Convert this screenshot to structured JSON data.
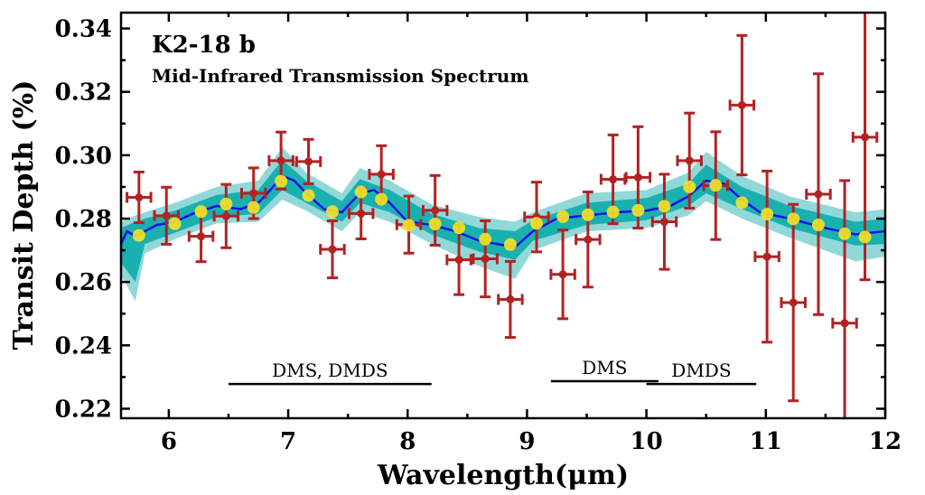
{
  "chart_data": {
    "type": "scatter",
    "title": "K2-18 b",
    "subtitle": "Mid-Infrared Transmission Spectrum",
    "xlabel": "Wavelength(μm)",
    "ylabel": "Transit Depth (%)",
    "xlim": [
      5.6,
      12.0
    ],
    "ylim": [
      0.217,
      0.345
    ],
    "x_ticks": [
      6,
      7,
      8,
      9,
      10,
      11,
      12
    ],
    "y_ticks": [
      0.22,
      0.24,
      0.26,
      0.28,
      0.3,
      0.32,
      0.34
    ],
    "grid": false,
    "colors": {
      "observed": "#b22222",
      "binned_model": "#f2e226",
      "median_model": "#1010e8",
      "band_1sigma": "#1ab0b0",
      "band_2sigma": "#92d8d8"
    },
    "observed": {
      "x": [
        5.75,
        5.98,
        6.27,
        6.48,
        6.71,
        6.94,
        7.17,
        7.37,
        7.61,
        7.78,
        8.01,
        8.23,
        8.43,
        8.65,
        8.86,
        9.08,
        9.3,
        9.51,
        9.72,
        9.93,
        10.15,
        10.36,
        10.58,
        10.8,
        11.01,
        11.23,
        11.44,
        11.66,
        11.83
      ],
      "y": [
        0.2867,
        0.2809,
        0.2744,
        0.2808,
        0.288,
        0.2983,
        0.298,
        0.2703,
        0.2816,
        0.294,
        0.2781,
        0.2826,
        0.267,
        0.2673,
        0.2545,
        0.2805,
        0.2624,
        0.2734,
        0.2924,
        0.293,
        0.279,
        0.2983,
        0.2904,
        0.3158,
        0.268,
        0.2535,
        0.2877,
        0.247,
        0.3057
      ],
      "yerr": [
        0.008,
        0.009,
        0.008,
        0.01,
        0.008,
        0.009,
        0.007,
        0.009,
        0.008,
        0.009,
        0.009,
        0.011,
        0.011,
        0.012,
        0.012,
        0.011,
        0.014,
        0.015,
        0.014,
        0.016,
        0.015,
        0.015,
        0.017,
        0.022,
        0.027,
        0.031,
        0.038,
        0.045,
        0.045
      ],
      "xerr": [
        0.1,
        0.1,
        0.1,
        0.1,
        0.1,
        0.1,
        0.1,
        0.1,
        0.1,
        0.1,
        0.1,
        0.1,
        0.1,
        0.1,
        0.1,
        0.1,
        0.1,
        0.1,
        0.1,
        0.1,
        0.1,
        0.1,
        0.1,
        0.1,
        0.1,
        0.1,
        0.1,
        0.1,
        0.1
      ]
    },
    "binned_model": {
      "x": [
        5.75,
        6.05,
        6.27,
        6.48,
        6.71,
        6.94,
        7.17,
        7.37,
        7.61,
        7.78,
        8.01,
        8.23,
        8.43,
        8.65,
        8.86,
        9.08,
        9.3,
        9.51,
        9.72,
        9.93,
        10.15,
        10.36,
        10.58,
        10.8,
        11.01,
        11.23,
        11.44,
        11.66,
        11.83
      ],
      "y": [
        0.2747,
        0.2784,
        0.2822,
        0.2846,
        0.2835,
        0.2918,
        0.2873,
        0.2822,
        0.2884,
        0.2861,
        0.2779,
        0.2783,
        0.2771,
        0.2735,
        0.2718,
        0.2785,
        0.2806,
        0.2812,
        0.2821,
        0.2826,
        0.2839,
        0.29,
        0.2905,
        0.285,
        0.2814,
        0.2799,
        0.278,
        0.2752,
        0.2742
      ]
    },
    "median_model": {
      "x": [
        5.6,
        5.65,
        5.72,
        5.8,
        5.9,
        6.05,
        6.2,
        6.4,
        6.6,
        6.75,
        6.85,
        6.95,
        7.05,
        7.15,
        7.3,
        7.45,
        7.6,
        7.72,
        7.85,
        8.0,
        8.2,
        8.4,
        8.6,
        8.75,
        8.9,
        9.05,
        9.25,
        9.5,
        9.75,
        10.0,
        10.2,
        10.35,
        10.5,
        10.65,
        10.8,
        10.95,
        11.2,
        11.5,
        11.75,
        12.0
      ],
      "y": [
        0.272,
        0.276,
        0.2745,
        0.276,
        0.278,
        0.279,
        0.2815,
        0.284,
        0.283,
        0.285,
        0.289,
        0.2935,
        0.292,
        0.288,
        0.283,
        0.282,
        0.288,
        0.289,
        0.285,
        0.279,
        0.278,
        0.276,
        0.273,
        0.272,
        0.271,
        0.276,
        0.28,
        0.281,
        0.282,
        0.2825,
        0.284,
        0.287,
        0.292,
        0.291,
        0.286,
        0.282,
        0.28,
        0.277,
        0.275,
        0.276
      ]
    },
    "band_1sigma": {
      "x": [
        5.6,
        5.72,
        5.8,
        6.05,
        6.4,
        6.75,
        6.95,
        7.15,
        7.45,
        7.6,
        7.85,
        8.2,
        8.6,
        8.9,
        9.05,
        9.5,
        10.0,
        10.35,
        10.5,
        10.8,
        11.2,
        11.75,
        12.0
      ],
      "lower": [
        0.266,
        0.26,
        0.272,
        0.2755,
        0.2805,
        0.2815,
        0.289,
        0.285,
        0.279,
        0.285,
        0.282,
        0.275,
        0.2695,
        0.267,
        0.273,
        0.278,
        0.2795,
        0.284,
        0.288,
        0.283,
        0.277,
        0.2715,
        0.272
      ],
      "upper": [
        0.277,
        0.279,
        0.28,
        0.2825,
        0.2875,
        0.289,
        0.2985,
        0.292,
        0.2855,
        0.2925,
        0.289,
        0.2815,
        0.277,
        0.276,
        0.2795,
        0.285,
        0.2865,
        0.291,
        0.297,
        0.29,
        0.284,
        0.279,
        0.28
      ]
    },
    "band_2sigma": {
      "x": [
        5.6,
        5.72,
        5.8,
        6.05,
        6.4,
        6.75,
        6.95,
        7.15,
        7.45,
        7.6,
        7.85,
        8.2,
        8.6,
        8.9,
        9.05,
        9.5,
        10.0,
        10.35,
        10.5,
        10.8,
        11.2,
        11.75,
        12.0
      ],
      "lower": [
        0.262,
        0.254,
        0.269,
        0.2735,
        0.2785,
        0.279,
        0.286,
        0.2825,
        0.276,
        0.282,
        0.279,
        0.272,
        0.265,
        0.261,
        0.27,
        0.276,
        0.277,
        0.281,
        0.2855,
        0.28,
        0.274,
        0.2665,
        0.268
      ],
      "upper": [
        0.279,
        0.281,
        0.282,
        0.285,
        0.29,
        0.292,
        0.3025,
        0.2945,
        0.288,
        0.296,
        0.292,
        0.2845,
        0.2805,
        0.279,
        0.282,
        0.288,
        0.289,
        0.2945,
        0.301,
        0.2935,
        0.287,
        0.282,
        0.283
      ]
    },
    "annotations": [
      {
        "text": "DMS, DMDS",
        "x_start": 6.5,
        "x_end": 8.2,
        "y": 0.2278
      },
      {
        "text": "DMS",
        "x_start": 9.2,
        "x_end": 10.1,
        "y": 0.2287
      },
      {
        "text": "DMDS",
        "x_start": 10.0,
        "x_end": 10.92,
        "y": 0.2278
      }
    ]
  }
}
